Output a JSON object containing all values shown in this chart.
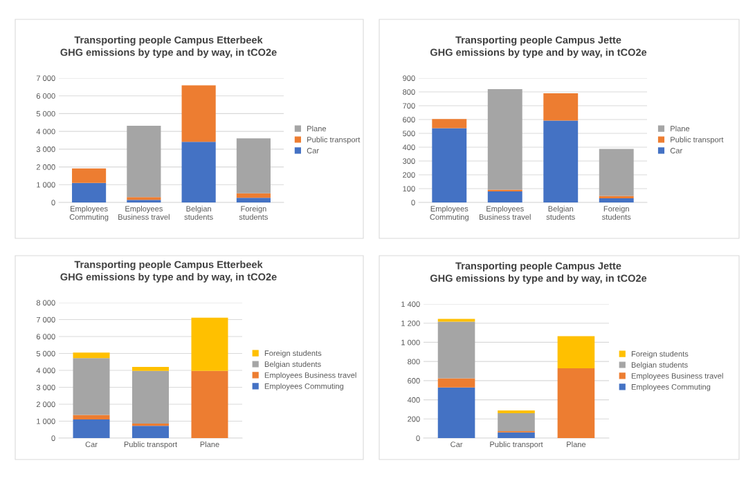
{
  "chart_data": [
    {
      "type": "bar",
      "stacked": true,
      "title": "Transporting people Campus Etterbeek\nGHG emissions by type and by way, in tCO2e",
      "categories": [
        "Employees\nCommuting",
        "Employees\nBusiness travel",
        "Belgian\nstudents",
        "Foreign\nstudents"
      ],
      "series": [
        {
          "name": "Car",
          "color": "#4472c4",
          "values": [
            1100,
            150,
            3410,
            260
          ]
        },
        {
          "name": "Public transport",
          "color": "#ed7d31",
          "values": [
            820,
            150,
            3180,
            260
          ]
        },
        {
          "name": "Plane",
          "color": "#a5a5a5",
          "values": [
            0,
            4020,
            0,
            3090
          ]
        }
      ],
      "ylim": [
        0,
        7000
      ],
      "yticks": [
        0,
        {
          "value": 1000,
          "label": "1 000"
        },
        {
          "value": 2000,
          "label": "2 000"
        },
        {
          "value": 3000,
          "label": "3 000"
        },
        {
          "value": 4000,
          "label": "4 000"
        },
        {
          "value": 5000,
          "label": "5 000"
        },
        {
          "value": 6000,
          "label": "6 000"
        },
        {
          "value": 7000,
          "label": "7 000"
        }
      ],
      "grid": "y",
      "legend": "right"
    },
    {
      "type": "bar",
      "stacked": true,
      "title": "Transporting people Campus Jette\nGHG emissions by type and by way, in tCO2e",
      "categories": [
        "Employees\nCommuting",
        "Employees\nBusiness travel",
        "Belgian\nstudents",
        "Foreign\nstudents"
      ],
      "series": [
        {
          "name": "Car",
          "color": "#4472c4",
          "values": [
            537,
            80,
            592,
            30
          ]
        },
        {
          "name": "Public transport",
          "color": "#ed7d31",
          "values": [
            67,
            13,
            198,
            17
          ]
        },
        {
          "name": "Plane",
          "color": "#a5a5a5",
          "values": [
            0,
            727,
            0,
            341
          ]
        }
      ],
      "ylim": [
        0,
        900
      ],
      "yticks": [
        0,
        100,
        200,
        300,
        400,
        500,
        600,
        700,
        800,
        900
      ],
      "grid": "y",
      "legend": "right"
    },
    {
      "type": "bar",
      "stacked": true,
      "title": "Transporting people Campus Etterbeek\nGHG emissions by type and by way, in tCO2e",
      "categories": [
        "Car",
        "Public transport",
        "Plane"
      ],
      "series": [
        {
          "name": "Employees Commuting",
          "color": "#4472c4",
          "values": [
            1100,
            720,
            0
          ]
        },
        {
          "name": "Employees Business travel",
          "color": "#ed7d31",
          "values": [
            270,
            140,
            3970
          ]
        },
        {
          "name": "Belgian students",
          "color": "#a5a5a5",
          "values": [
            3350,
            3110,
            0
          ]
        },
        {
          "name": "Foreign students",
          "color": "#ffc000",
          "values": [
            330,
            230,
            3140
          ]
        }
      ],
      "ylim": [
        0,
        8000
      ],
      "yticks": [
        0,
        {
          "value": 1000,
          "label": "1 000"
        },
        {
          "value": 2000,
          "label": "2 000"
        },
        {
          "value": 3000,
          "label": "3 000"
        },
        {
          "value": 4000,
          "label": "4 000"
        },
        {
          "value": 5000,
          "label": "5 000"
        },
        {
          "value": 6000,
          "label": "6 000"
        },
        {
          "value": 7000,
          "label": "7 000"
        },
        {
          "value": 8000,
          "label": "8 000"
        }
      ],
      "grid": "y",
      "legend": "right"
    },
    {
      "type": "bar",
      "stacked": true,
      "title": "Transporting people Campus Jette\nGHG emissions by type and by way, in tCO2e",
      "categories": [
        "Car",
        "Public transport",
        "Plane"
      ],
      "series": [
        {
          "name": "Employees Commuting",
          "color": "#4472c4",
          "values": [
            529,
            60,
            0
          ]
        },
        {
          "name": "Employees Business travel",
          "color": "#ed7d31",
          "values": [
            96,
            12,
            728
          ]
        },
        {
          "name": "Belgian students",
          "color": "#a5a5a5",
          "values": [
            591,
            188,
            0
          ]
        },
        {
          "name": "Foreign students",
          "color": "#ffc000",
          "values": [
            29,
            28,
            337
          ]
        }
      ],
      "ylim": [
        0,
        1400
      ],
      "yticks": [
        0,
        200,
        400,
        600,
        800,
        {
          "value": 1000,
          "label": "1 000"
        },
        {
          "value": 1200,
          "label": "1 200"
        },
        {
          "value": 1400,
          "label": "1 400"
        }
      ],
      "grid": "y",
      "legend": "right"
    }
  ]
}
